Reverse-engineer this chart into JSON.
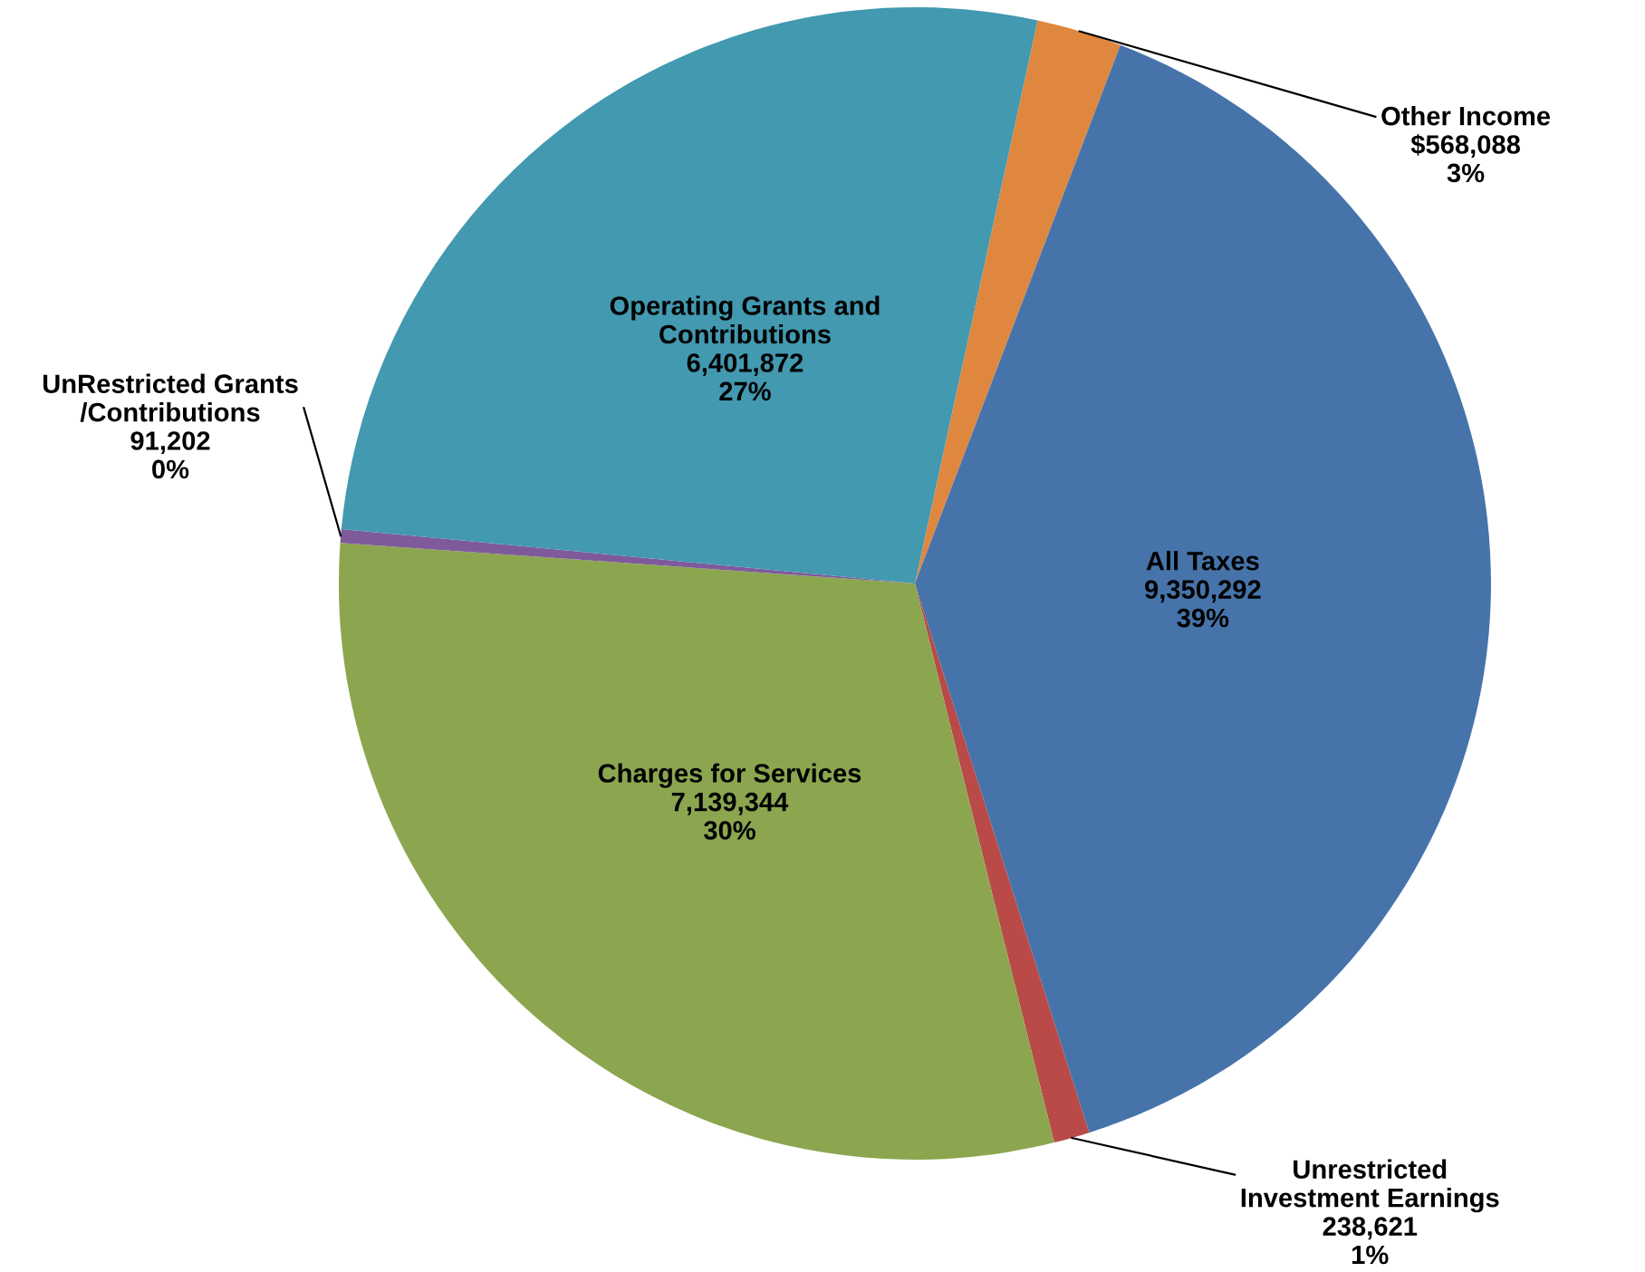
{
  "chart_data": {
    "type": "pie",
    "categories": [
      "Other Income",
      "All Taxes",
      "Unrestricted\nInvestment Earnings",
      "Charges for Services",
      "UnRestricted Grants\n/Contributions",
      "Operating Grants and\nContributions"
    ],
    "values": [
      568088,
      9350292,
      238621,
      7139344,
      91202,
      6401872
    ],
    "colors": [
      "#e0873f",
      "#4674aa",
      "#b94a48",
      "#8ba64f",
      "#7e5a9b",
      "#4299b0"
    ],
    "value_labels": [
      "$568,088\n3%",
      "9,350,292\n39%",
      "238,621\n1%",
      "7,139,344\n30%",
      "91,202\n0%",
      "6,401,872\n27%"
    ]
  }
}
